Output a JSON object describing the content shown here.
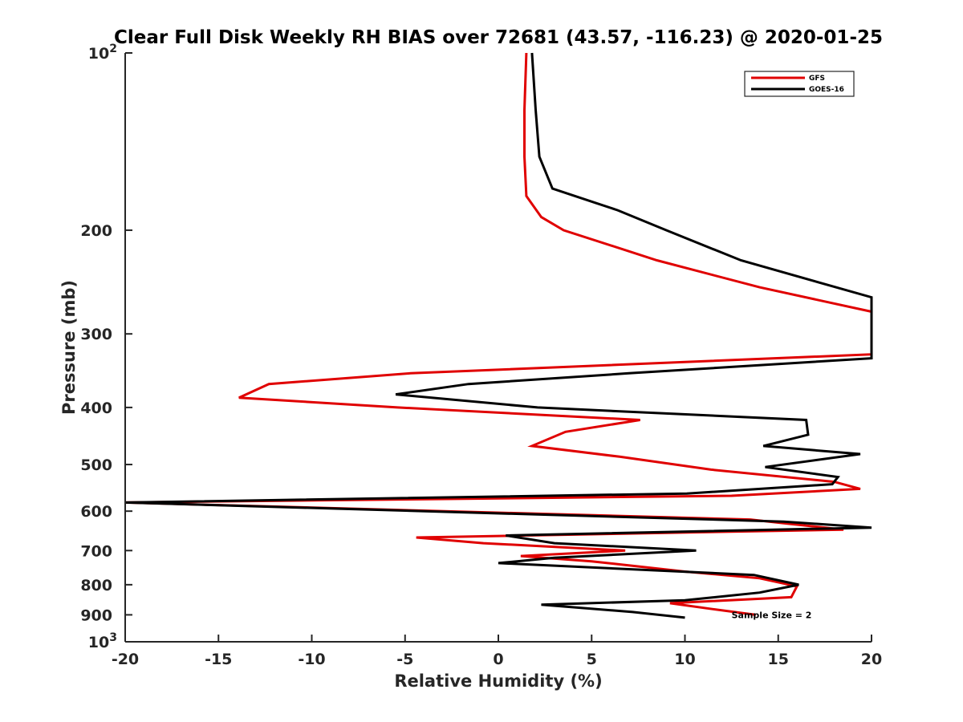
{
  "chart_data": {
    "type": "line",
    "title": "Clear Full Disk Weekly RH BIAS over 72681 (43.57, -116.23) @ 2020-01-25",
    "xlabel": "Relative Humidity (%)",
    "ylabel": "Pressure (mb)",
    "xlim": [
      -20,
      20
    ],
    "ylim": [
      100,
      1000
    ],
    "y_scale": "log",
    "y_reversed": true,
    "x_ticks": [
      -20,
      -15,
      -10,
      -5,
      0,
      5,
      10,
      15,
      20
    ],
    "x_tick_labels": [
      "-20",
      "-15",
      "-10",
      "-5",
      "0",
      "5",
      "10",
      "15",
      "20"
    ],
    "y_ticks": [
      100,
      200,
      300,
      400,
      500,
      600,
      700,
      800,
      900,
      1000
    ],
    "y_tick_labels": [
      {
        "base": "10",
        "exp": "2"
      },
      {
        "base": "200",
        "exp": ""
      },
      {
        "base": "300",
        "exp": ""
      },
      {
        "base": "400",
        "exp": ""
      },
      {
        "base": "500",
        "exp": ""
      },
      {
        "base": "600",
        "exp": ""
      },
      {
        "base": "700",
        "exp": ""
      },
      {
        "base": "800",
        "exp": ""
      },
      {
        "base": "900",
        "exp": ""
      },
      {
        "base": "10",
        "exp": "3"
      }
    ],
    "grid": false,
    "legend_position": "top-right",
    "series": [
      {
        "name": "GFS",
        "color": "#e00000",
        "points": [
          [
            1.5,
            100
          ],
          [
            1.4,
            125
          ],
          [
            1.4,
            150
          ],
          [
            1.5,
            175
          ],
          [
            2.3,
            190
          ],
          [
            3.5,
            200
          ],
          [
            8.5,
            225
          ],
          [
            14,
            250
          ],
          [
            20,
            275
          ],
          [
            20,
            325
          ],
          [
            -4.7,
            350
          ],
          [
            -12.3,
            365
          ],
          [
            -13.9,
            385
          ],
          [
            -5.4,
            400
          ],
          [
            7.6,
            420
          ],
          [
            3.6,
            440
          ],
          [
            1.8,
            465
          ],
          [
            6.5,
            485
          ],
          [
            11.4,
            510
          ],
          [
            18,
            535
          ],
          [
            19.4,
            550
          ],
          [
            12.5,
            565
          ],
          [
            -20,
            580
          ],
          [
            13.5,
            620
          ],
          [
            15.5,
            630
          ],
          [
            18.5,
            645
          ],
          [
            -4.4,
            665
          ],
          [
            -0.8,
            680
          ],
          [
            6.8,
            700
          ],
          [
            1.2,
            715
          ],
          [
            5,
            730
          ],
          [
            10,
            760
          ],
          [
            14,
            780
          ],
          [
            16,
            805
          ],
          [
            15.7,
            840
          ],
          [
            9.2,
            860
          ],
          [
            11.5,
            880
          ],
          [
            13.8,
            900
          ]
        ]
      },
      {
        "name": "GOES-16",
        "color": "#000000",
        "points": [
          [
            1.8,
            100
          ],
          [
            2,
            125
          ],
          [
            2.2,
            150
          ],
          [
            2.9,
            170
          ],
          [
            6.4,
            185
          ],
          [
            9,
            200
          ],
          [
            13,
            225
          ],
          [
            20,
            260
          ],
          [
            20,
            330
          ],
          [
            7,
            350
          ],
          [
            -1.6,
            365
          ],
          [
            -5.5,
            380
          ],
          [
            2.1,
            400
          ],
          [
            16.5,
            420
          ],
          [
            16.6,
            445
          ],
          [
            14.2,
            465
          ],
          [
            19.4,
            480
          ],
          [
            14.3,
            505
          ],
          [
            18.2,
            525
          ],
          [
            17.9,
            540
          ],
          [
            10.1,
            560
          ],
          [
            -20,
            580
          ],
          [
            15.3,
            625
          ],
          [
            20,
            640
          ],
          [
            0.4,
            660
          ],
          [
            3,
            680
          ],
          [
            10.6,
            700
          ],
          [
            3,
            720
          ],
          [
            0,
            735
          ],
          [
            13.7,
            770
          ],
          [
            16.1,
            800
          ],
          [
            14,
            825
          ],
          [
            10,
            850
          ],
          [
            2.3,
            865
          ],
          [
            7.2,
            890
          ],
          [
            10,
            910
          ]
        ]
      }
    ],
    "annotations": [
      {
        "text": "Sample Size = 2",
        "x": 12.5,
        "y": 900
      }
    ]
  }
}
